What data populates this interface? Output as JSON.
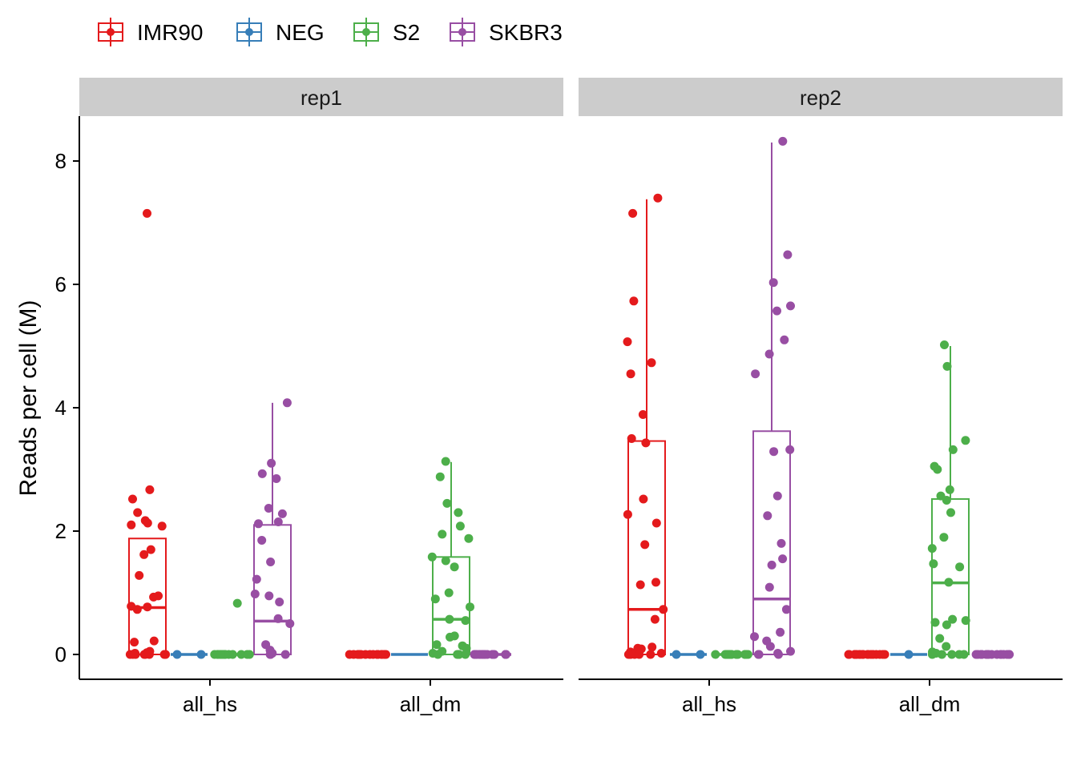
{
  "chart_data": {
    "type": "boxplot-jitter",
    "title": "",
    "xlabel": "",
    "ylabel": "Reads per cell (M)",
    "ylim": [
      -0.4,
      8.7
    ],
    "yticks": [
      0,
      2,
      4,
      6,
      8
    ],
    "categories": [
      "all_hs",
      "all_dm"
    ],
    "legend": {
      "position": "top-left",
      "entries": [
        {
          "name": "IMR90",
          "color": "#E41A1C"
        },
        {
          "name": "NEG",
          "color": "#377EB8"
        },
        {
          "name": "S2",
          "color": "#4DAF4A"
        },
        {
          "name": "SKBR3",
          "color": "#984EA3"
        }
      ]
    },
    "panels": [
      {
        "label": "rep1",
        "groups": [
          {
            "category": "all_hs",
            "series": "IMR90",
            "box": {
              "q1": 0,
              "median": 0.76,
              "q3": 1.88,
              "whisker_low": 0,
              "whisker_high": 1.88
            },
            "points": [
              7.15,
              2.67,
              2.52,
              2.3,
              2.17,
              2.13,
              2.1,
              2.08,
              1.7,
              1.62,
              1.28,
              0.95,
              0.93,
              0.78,
              0.77,
              0.73,
              0.22,
              0.2,
              0.05,
              0.03,
              0.02,
              0,
              0,
              0,
              0,
              0,
              0,
              0,
              0,
              0
            ]
          },
          {
            "category": "all_hs",
            "series": "NEG",
            "box": {
              "q1": 0,
              "median": 0,
              "q3": 0,
              "whisker_low": 0,
              "whisker_high": 0
            },
            "points": [
              0,
              0
            ]
          },
          {
            "category": "all_hs",
            "series": "S2",
            "box": {
              "q1": 0,
              "median": 0,
              "q3": 0,
              "whisker_low": 0,
              "whisker_high": 0
            },
            "points": [
              0.83,
              0,
              0,
              0,
              0,
              0,
              0,
              0,
              0,
              0,
              0,
              0,
              0,
              0,
              0
            ]
          },
          {
            "category": "all_hs",
            "series": "SKBR3",
            "box": {
              "q1": 0,
              "median": 0.54,
              "q3": 2.1,
              "whisker_low": 0,
              "whisker_high": 4.08
            },
            "points": [
              4.08,
              3.1,
              2.93,
              2.85,
              2.37,
              2.28,
              2.15,
              2.12,
              1.85,
              1.5,
              1.22,
              0.98,
              0.95,
              0.85,
              0.58,
              0.5,
              0.16,
              0.07,
              0.02,
              0,
              0,
              0
            ]
          },
          {
            "category": "all_dm",
            "series": "IMR90",
            "box": {
              "q1": 0,
              "median": 0,
              "q3": 0,
              "whisker_low": 0,
              "whisker_high": 0
            },
            "points": [
              0,
              0,
              0,
              0,
              0,
              0,
              0,
              0,
              0,
              0,
              0,
              0,
              0,
              0,
              0,
              0
            ]
          },
          {
            "category": "all_dm",
            "series": "NEG",
            "box": {
              "q1": 0,
              "median": 0,
              "q3": 0,
              "whisker_low": 0,
              "whisker_high": 0
            },
            "points": []
          },
          {
            "category": "all_dm",
            "series": "S2",
            "box": {
              "q1": 0,
              "median": 0.57,
              "q3": 1.58,
              "whisker_low": 0,
              "whisker_high": 3.12
            },
            "points": [
              3.13,
              2.88,
              2.45,
              2.3,
              2.08,
              1.95,
              1.88,
              1.58,
              1.52,
              1.42,
              1.0,
              0.9,
              0.77,
              0.57,
              0.55,
              0.3,
              0.28,
              0.16,
              0.14,
              0.1,
              0.05,
              0.02,
              0,
              0,
              0,
              0,
              0
            ]
          },
          {
            "category": "all_dm",
            "series": "SKBR3",
            "box": {
              "q1": 0,
              "median": 0,
              "q3": 0,
              "whisker_low": 0,
              "whisker_high": 0
            },
            "points": [
              0,
              0,
              0,
              0,
              0,
              0,
              0,
              0,
              0,
              0,
              0,
              0,
              0,
              0,
              0,
              0,
              0,
              0
            ]
          }
        ]
      },
      {
        "label": "rep2",
        "groups": [
          {
            "category": "all_hs",
            "series": "IMR90",
            "box": {
              "q1": 0,
              "median": 0.73,
              "q3": 3.46,
              "whisker_low": 0,
              "whisker_high": 7.38
            },
            "points": [
              7.4,
              7.15,
              5.73,
              5.07,
              4.73,
              4.55,
              3.89,
              3.5,
              3.43,
              2.52,
              2.27,
              2.13,
              1.78,
              1.17,
              1.13,
              0.73,
              0.57,
              0.12,
              0.1,
              0.09,
              0.04,
              0.02,
              0,
              0,
              0,
              0,
              0,
              0
            ]
          },
          {
            "category": "all_hs",
            "series": "NEG",
            "box": {
              "q1": 0,
              "median": 0,
              "q3": 0,
              "whisker_low": 0,
              "whisker_high": 0
            },
            "points": [
              0,
              0
            ]
          },
          {
            "category": "all_hs",
            "series": "S2",
            "box": {
              "q1": 0,
              "median": 0,
              "q3": 0,
              "whisker_low": 0,
              "whisker_high": 0
            },
            "points": [
              0,
              0,
              0,
              0,
              0,
              0,
              0,
              0,
              0,
              0,
              0,
              0,
              0,
              0,
              0,
              0,
              0,
              0
            ]
          },
          {
            "category": "all_hs",
            "series": "SKBR3",
            "box": {
              "q1": 0,
              "median": 0.9,
              "q3": 3.62,
              "whisker_low": 0,
              "whisker_high": 8.3
            },
            "points": [
              8.32,
              6.48,
              6.03,
              5.65,
              5.57,
              5.1,
              4.87,
              4.55,
              3.32,
              3.29,
              2.57,
              2.25,
              1.8,
              1.55,
              1.45,
              1.09,
              0.73,
              0.36,
              0.29,
              0.22,
              0.13,
              0.05,
              0.02,
              0,
              0,
              0
            ]
          },
          {
            "category": "all_dm",
            "series": "IMR90",
            "box": {
              "q1": 0,
              "median": 0,
              "q3": 0,
              "whisker_low": 0,
              "whisker_high": 0
            },
            "points": [
              0,
              0,
              0,
              0,
              0,
              0,
              0,
              0,
              0,
              0,
              0,
              0,
              0,
              0,
              0,
              0,
              0,
              0
            ]
          },
          {
            "category": "all_dm",
            "series": "NEG",
            "box": {
              "q1": 0,
              "median": 0,
              "q3": 0,
              "whisker_low": 0,
              "whisker_high": 0
            },
            "points": [
              0
            ]
          },
          {
            "category": "all_dm",
            "series": "S2",
            "box": {
              "q1": 0,
              "median": 1.16,
              "q3": 2.52,
              "whisker_low": 0,
              "whisker_high": 5.0
            },
            "points": [
              5.02,
              4.67,
              3.47,
              3.32,
              3.05,
              3.0,
              2.67,
              2.57,
              2.5,
              2.3,
              1.9,
              1.72,
              1.47,
              1.42,
              1.17,
              0.57,
              0.55,
              0.52,
              0.48,
              0.26,
              0.13,
              0.04,
              0.02,
              0,
              0,
              0,
              0,
              0
            ]
          },
          {
            "category": "all_dm",
            "series": "SKBR3",
            "box": {
              "q1": 0,
              "median": 0,
              "q3": 0,
              "whisker_low": 0,
              "whisker_high": 0
            },
            "points": [
              0,
              0,
              0,
              0,
              0,
              0,
              0,
              0,
              0,
              0,
              0,
              0,
              0,
              0,
              0,
              0
            ]
          }
        ]
      }
    ]
  }
}
